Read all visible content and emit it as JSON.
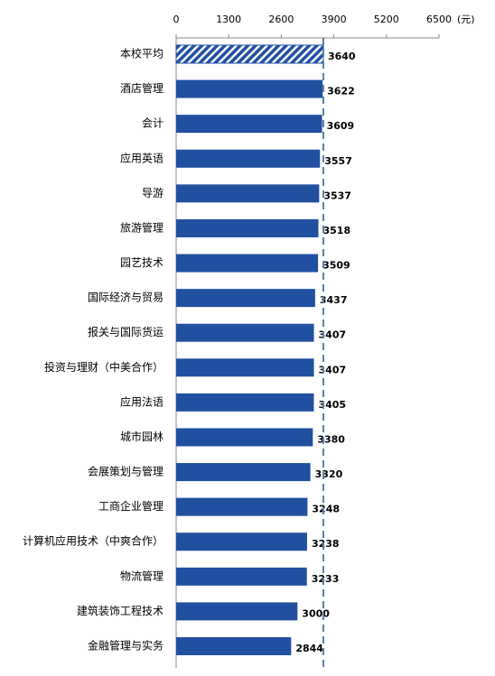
{
  "chart_data": {
    "type": "barh",
    "x_unit": "(元)",
    "categories": [
      "本校平均",
      "酒店管理",
      "会计",
      "应用英语",
      "导游",
      "旅游管理",
      "园艺技术",
      "国际经济与贸易",
      "报关与国际货运",
      "投资与理财（中美合作）",
      "应用法语",
      "城市园林",
      "会展策划与管理",
      "工商企业管理",
      "计算机应用技术（中爽合作）",
      "物流管理",
      "建筑装饰工程技术",
      "金融管理与实务"
    ],
    "values": [
      3640,
      3622,
      3609,
      3557,
      3537,
      3518,
      3509,
      3437,
      3407,
      3407,
      3405,
      3380,
      3320,
      3248,
      3238,
      3233,
      3000,
      2844
    ],
    "color": "#2150a0",
    "xlim": [
      0,
      6500
    ],
    "xticks": [
      0,
      1300,
      2600,
      3900,
      5200,
      6500
    ],
    "axis_position": "top",
    "reference_line_color": "#5b7fa8"
  }
}
